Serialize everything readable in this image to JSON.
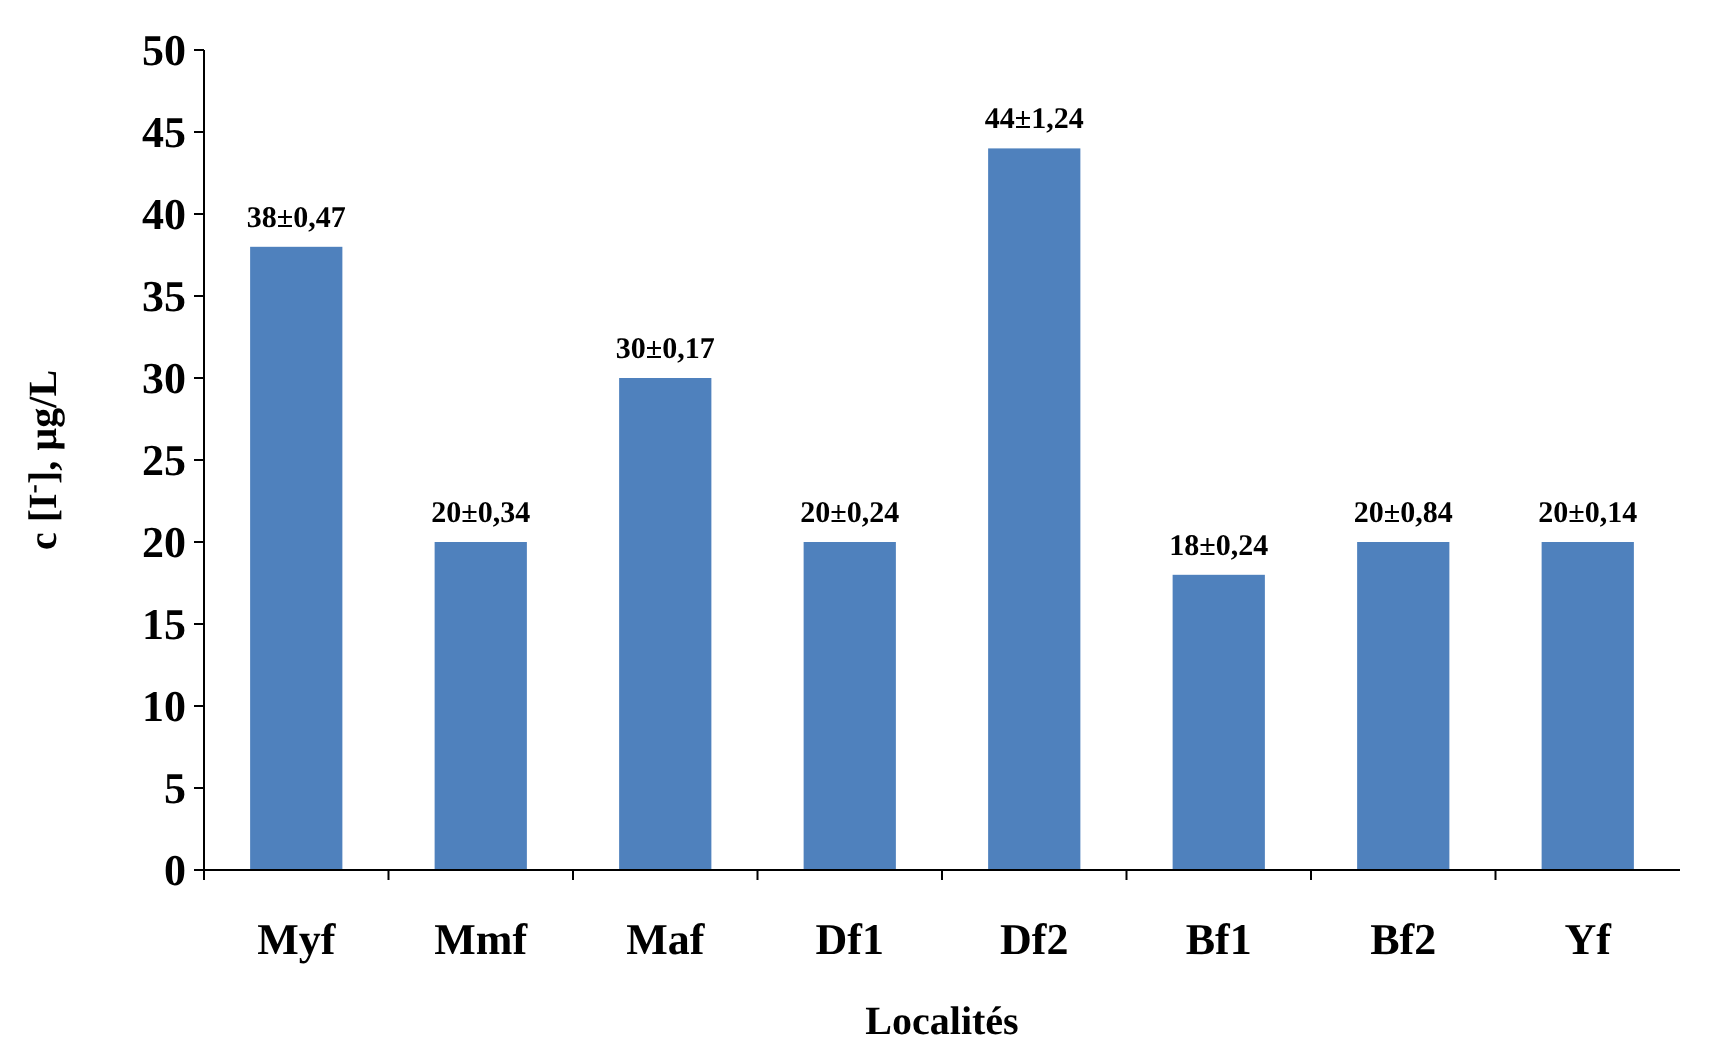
{
  "chart_data": {
    "type": "bar",
    "xlabel": "Localités",
    "ylabel": "c [I$^{-}$], µg/L",
    "categories": [
      "Myf",
      "Mmf",
      "Maf",
      "Df1",
      "Df2",
      "Bf1",
      "Bf2",
      "Yf"
    ],
    "values": [
      38,
      20,
      30,
      20,
      44,
      18,
      20,
      20
    ],
    "value_labels": [
      "38±0,47",
      "20±0,34",
      "30±0,17",
      "20±0,24",
      "44±1,24",
      "18±0,24",
      "20±0,84",
      "20±0,14"
    ],
    "color": "#4f81bd",
    "ylim": [
      0,
      50
    ],
    "yticks": [
      0,
      5,
      10,
      15,
      20,
      25,
      30,
      35,
      40,
      45,
      50
    ],
    "grid": false
  }
}
